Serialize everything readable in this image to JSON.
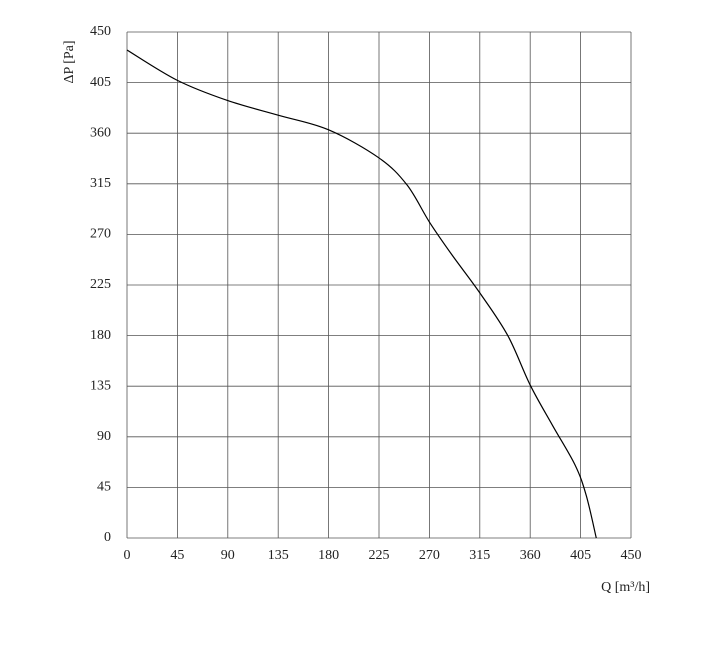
{
  "chart_data": {
    "type": "line",
    "x_label": "Q [m³/h]",
    "y_label": "ΔP [Pa]",
    "x": [
      0,
      45,
      90,
      135,
      180,
      225,
      250,
      270,
      290,
      315,
      340,
      360,
      380,
      400,
      410,
      419
    ],
    "series": [
      {
        "name": "curve",
        "color": "#000000",
        "values": [
          434,
          407,
          389,
          376,
          363,
          338,
          314,
          281,
          252,
          218,
          180,
          136,
          100,
          65,
          38,
          0
        ]
      }
    ],
    "xlim": [
      0,
      450
    ],
    "xticks": [
      0,
      45,
      90,
      135,
      180,
      225,
      270,
      315,
      360,
      405,
      450
    ],
    "ylim": [
      0,
      450
    ],
    "yticks": [
      0,
      45,
      90,
      135,
      180,
      225,
      270,
      315,
      360,
      405,
      450
    ],
    "grid": true
  }
}
